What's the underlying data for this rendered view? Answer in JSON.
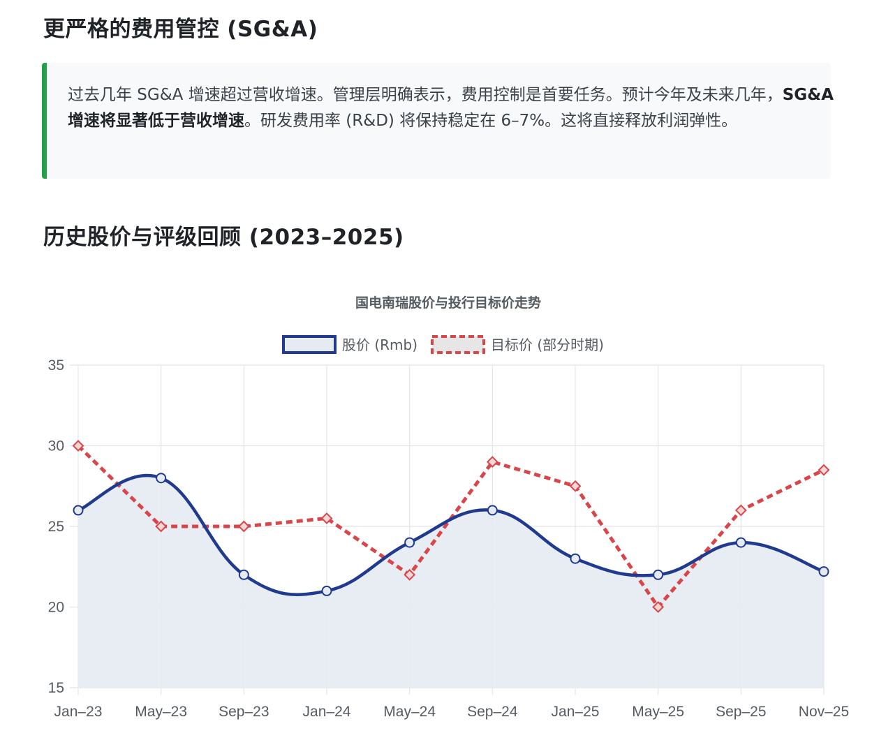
{
  "sections": {
    "cost_heading": "更严格的费用管控 (SG&A)",
    "cost_text_1": "过去几年 SG&A 增速超过营收增速。管理层明确表示，费用控制是首要任务。预计今年及未来几年，",
    "cost_text_bold": "SG&A 增速将显著低于营收增速",
    "cost_text_2": "。研发费用率 (R&D) 将保持稳定在 6–7%。这将直接释放利润弹性。",
    "history_heading": "历史股价与评级回顾 (2023–2025)"
  },
  "colors": {
    "accent_green": "#22a04b",
    "price_line": "#1f3a8f",
    "price_fill": "#e6ebf2",
    "target_line": "#d9464a",
    "target_fill": "#e6e6e6",
    "grid": "#e2e4e7"
  },
  "chart_data": {
    "type": "line",
    "title": "国电南瑞股价与投行目标价走势",
    "categories": [
      "Jan–23",
      "May–23",
      "Sep–23",
      "Jan–24",
      "May–24",
      "Sep–24",
      "Jan–25",
      "May–25",
      "Sep–25",
      "Nov–25"
    ],
    "series": [
      {
        "name": "股价 (Rmb)",
        "style": "solid-smooth-filled",
        "values": [
          26,
          28,
          22,
          21,
          24,
          26,
          23,
          22,
          24,
          22.2
        ]
      },
      {
        "name": "目标价 (部分时期)",
        "style": "dashed-straight",
        "values": [
          30,
          25,
          25,
          25.5,
          22,
          29,
          27.5,
          20,
          26,
          28.5
        ]
      }
    ],
    "ylim": [
      15,
      35
    ],
    "yticks": [
      15,
      20,
      25,
      30,
      35
    ],
    "grid": true,
    "legend": "top-center",
    "xlabel": "",
    "ylabel": ""
  }
}
